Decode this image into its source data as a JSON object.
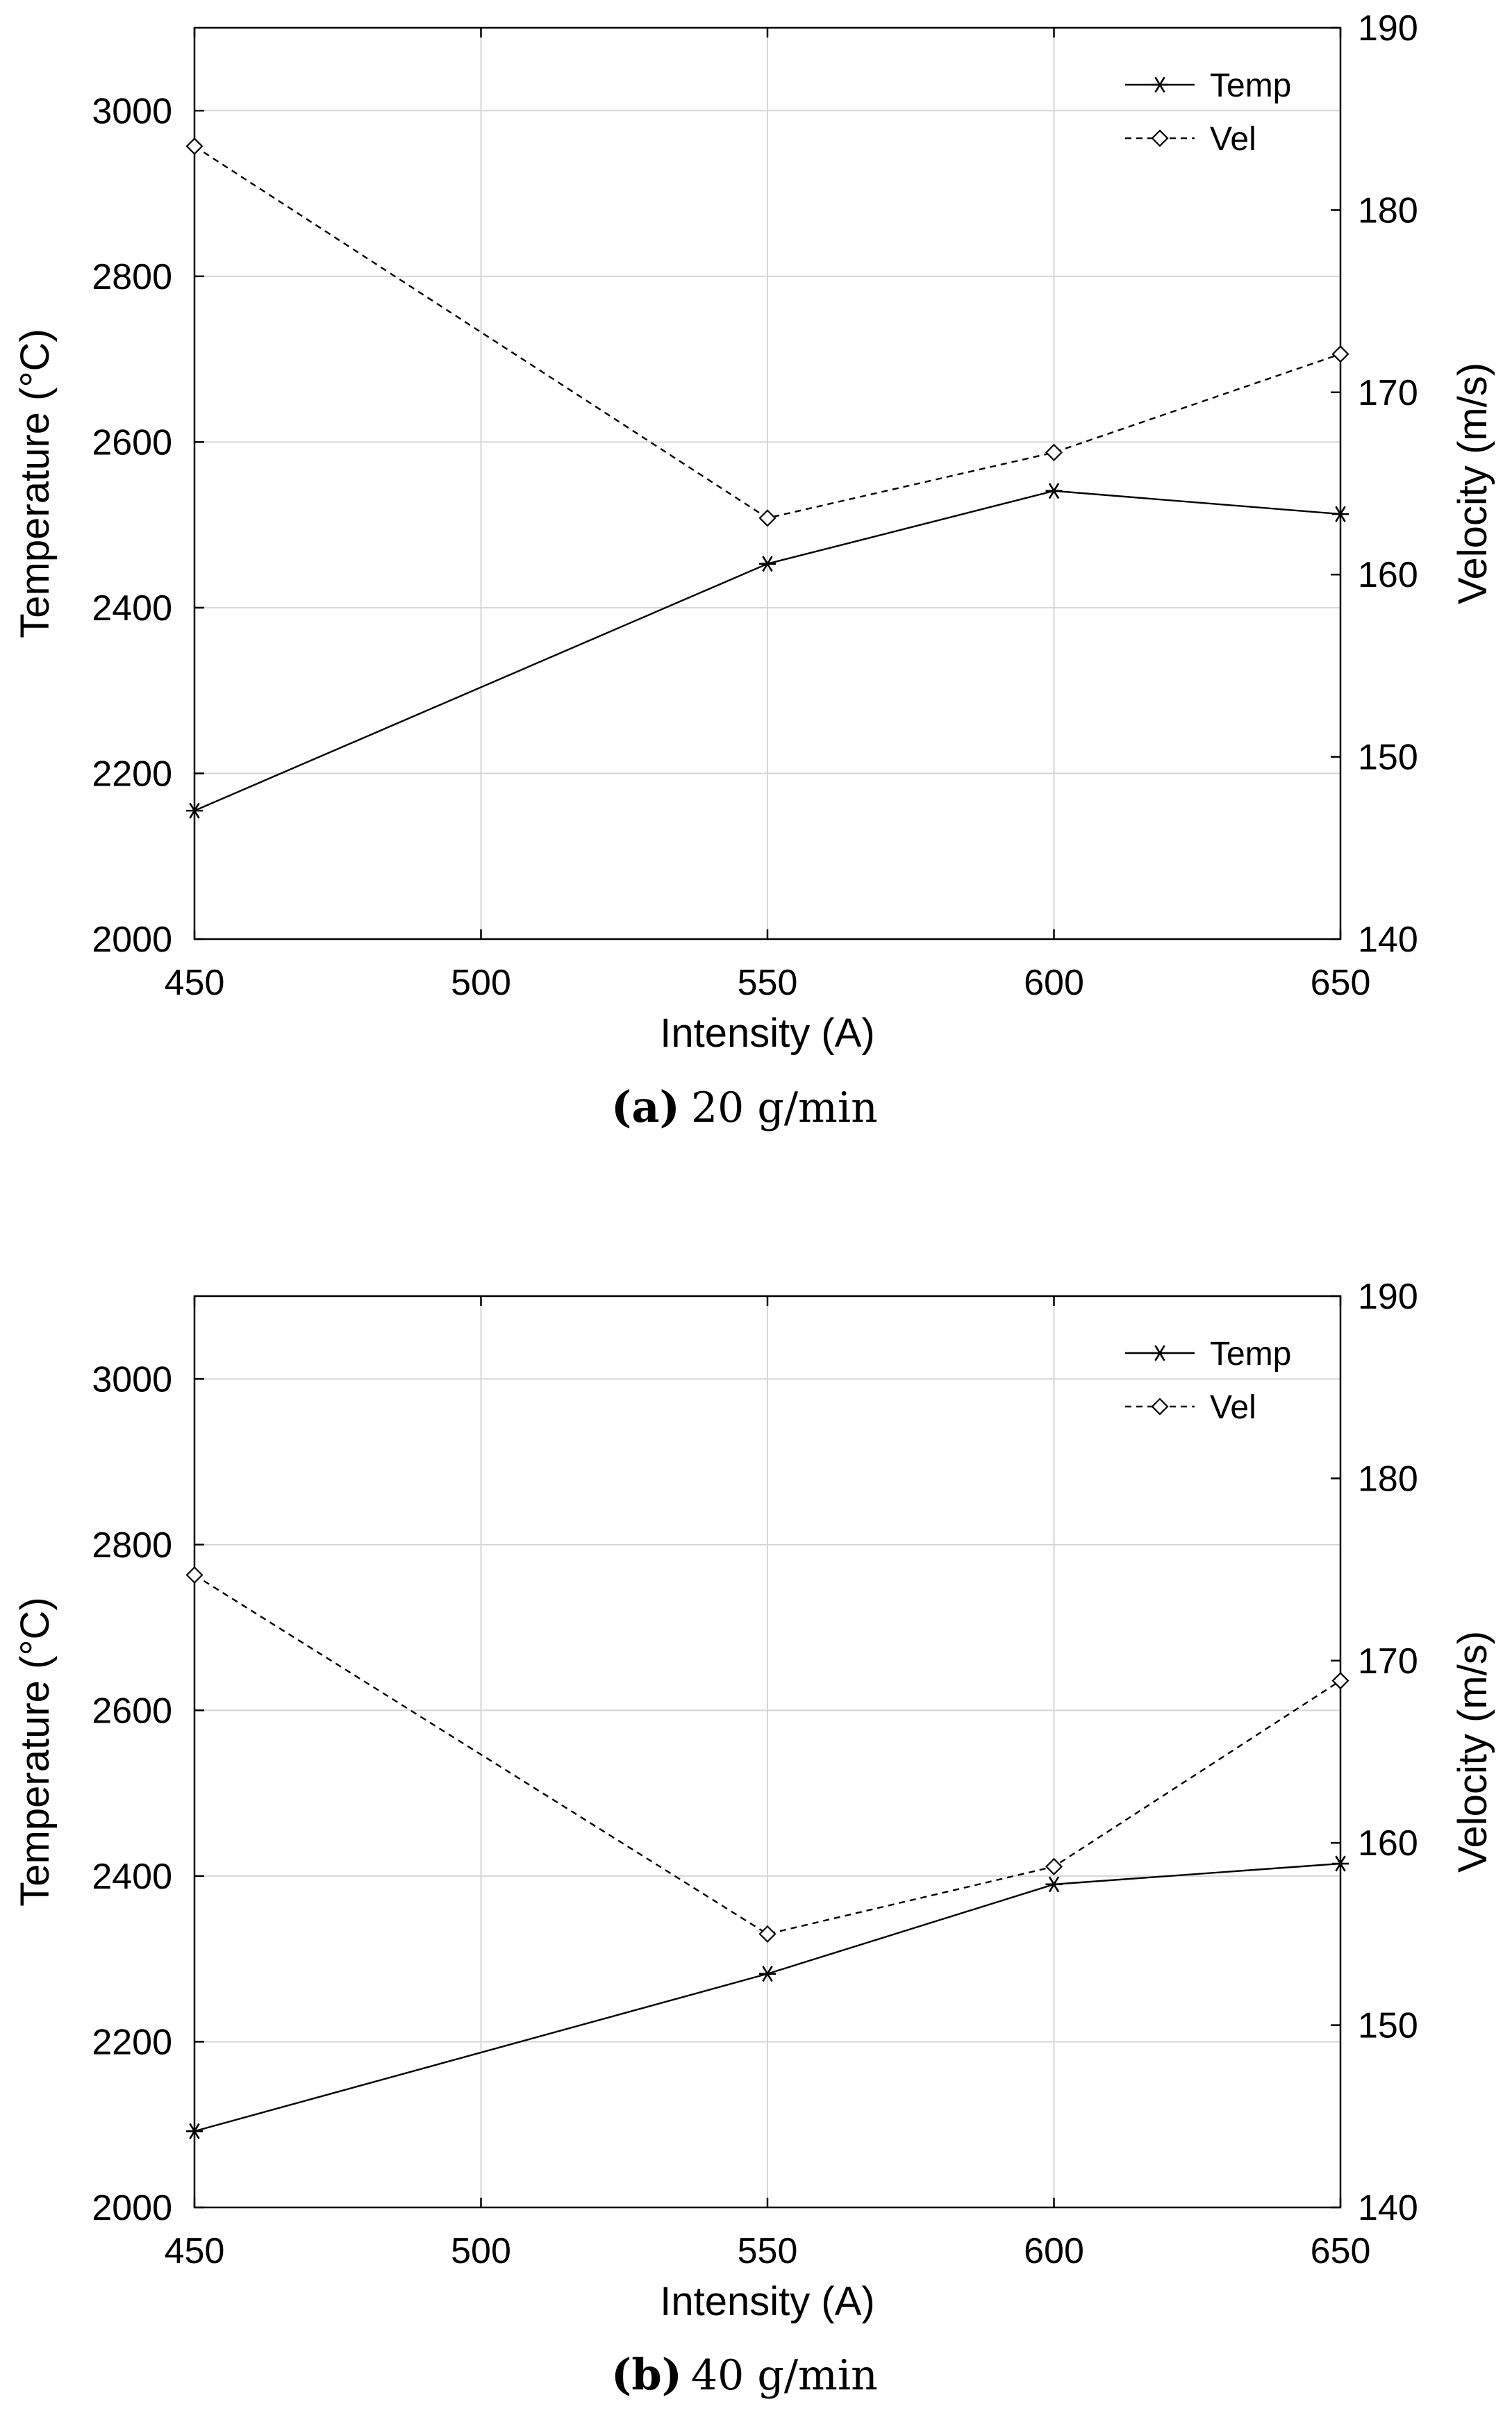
{
  "chart_data": [
    {
      "type": "line",
      "caption_label": "(a)",
      "caption_value": "20 g/min",
      "xlabel": "Intensity (A)",
      "ylabel_left": "Temperature (°C)",
      "ylabel_right": "Velocity (m/s)",
      "xlim": [
        450,
        650
      ],
      "ylim_left": [
        2000,
        3100
      ],
      "ylim_right": [
        140,
        190
      ],
      "xticks": [
        450,
        500,
        550,
        600,
        650
      ],
      "yticks_left": [
        2000,
        2200,
        2400,
        2600,
        2800,
        3000
      ],
      "yticks_right": [
        140,
        150,
        160,
        170,
        180,
        190
      ],
      "grid": true,
      "legend_position": "top-right",
      "series": [
        {
          "name": "Temp",
          "axis": "left",
          "marker": "asterisk",
          "line_style": "solid",
          "x": [
            450,
            550,
            600,
            650
          ],
          "values": [
            2155,
            2453,
            2541,
            2513
          ]
        },
        {
          "name": "Vel",
          "axis": "right",
          "marker": "diamond",
          "line_style": "dashed",
          "x": [
            450,
            550,
            600,
            650
          ],
          "values": [
            183.5,
            163.1,
            166.7,
            172.1
          ]
        }
      ]
    },
    {
      "type": "line",
      "caption_label": "(b)",
      "caption_value": "40 g/min",
      "xlabel": "Intensity (A)",
      "ylabel_left": "Temperature (°C)",
      "ylabel_right": "Velocity (m/s)",
      "xlim": [
        450,
        650
      ],
      "ylim_left": [
        2000,
        3100
      ],
      "ylim_right": [
        140,
        190
      ],
      "xticks": [
        450,
        500,
        550,
        600,
        650
      ],
      "yticks_left": [
        2000,
        2200,
        2400,
        2600,
        2800,
        3000
      ],
      "yticks_right": [
        140,
        150,
        160,
        170,
        180,
        190
      ],
      "grid": true,
      "legend_position": "top-right",
      "series": [
        {
          "name": "Temp",
          "axis": "left",
          "marker": "asterisk",
          "line_style": "solid",
          "x": [
            450,
            550,
            600,
            650
          ],
          "values": [
            2092,
            2282,
            2390,
            2415
          ]
        },
        {
          "name": "Vel",
          "axis": "right",
          "marker": "diamond",
          "line_style": "dashed",
          "x": [
            450,
            550,
            600,
            650
          ],
          "values": [
            174.7,
            155.0,
            158.7,
            168.9
          ]
        }
      ]
    }
  ]
}
